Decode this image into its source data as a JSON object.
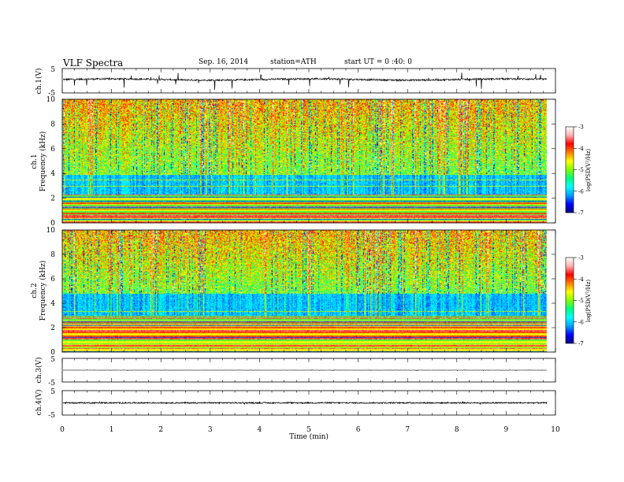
{
  "header": {
    "title": "VLF  Spectra",
    "date": "Sep. 16, 2014",
    "station": "station=ATH",
    "start_ut": "start  UT =   0 :40: 0"
  },
  "chart_data": [
    {
      "type": "line",
      "name": "ch.1",
      "ylabel": "ch.1(V)",
      "ylim": [
        -5,
        5
      ],
      "yticks": [
        "5",
        "-5"
      ],
      "baseline_value": 0.5,
      "noise_amplitude": 0.35,
      "spike_amplitude": 3.5
    },
    {
      "type": "heatmap",
      "name": "ch.1",
      "ylabel_line1": "ch.1",
      "ylabel_line2": "Frequency  (kHz)",
      "ylim": [
        0,
        10
      ],
      "yticks": [
        "0",
        "2",
        "4",
        "6",
        "8",
        "10"
      ],
      "colorbar": {
        "label": "log(PSD(V²/Hz)",
        "ticks": [
          "-3",
          "-4",
          "-5",
          "-6",
          "-7"
        ],
        "range": [
          -7,
          -3
        ]
      },
      "bands": [
        {
          "from_khz": 0.0,
          "to_khz": 2.3,
          "description": "horizontal line-noise bands"
        },
        {
          "from_khz": 2.3,
          "to_khz": 4.0,
          "description": "low-PSD blue band"
        },
        {
          "from_khz": 4.0,
          "to_khz": 10.0,
          "description": "sferics, high PSD"
        }
      ]
    },
    {
      "type": "heatmap",
      "name": "ch.2",
      "ylabel_line1": "ch.2",
      "ylabel_line2": "Frequency  (kHz)",
      "ylim": [
        0,
        10
      ],
      "yticks": [
        "0",
        "2",
        "4",
        "6",
        "8",
        "10"
      ],
      "colorbar": {
        "label": "log(PSD(V²/Hz)",
        "ticks": [
          "-3",
          "-4",
          "-5",
          "-6",
          "-7"
        ],
        "range": [
          -7,
          -3
        ]
      },
      "bands": [
        {
          "from_khz": 0.0,
          "to_khz": 3.0,
          "description": "horizontal line-noise bands"
        },
        {
          "from_khz": 3.0,
          "to_khz": 4.8,
          "description": "low-PSD blue band"
        },
        {
          "from_khz": 4.8,
          "to_khz": 10.0,
          "description": "sferics, high PSD"
        }
      ]
    },
    {
      "type": "line",
      "name": "ch.3",
      "ylabel": "ch.3(V)",
      "ylim": [
        -5,
        5
      ],
      "yticks": [
        "5",
        "-5"
      ],
      "baseline_value": 0,
      "noise_amplitude": 0.05,
      "spike_amplitude": 0.2
    },
    {
      "type": "line",
      "name": "ch.4",
      "ylabel": "ch.4(V)",
      "ylim": [
        -5,
        5
      ],
      "yticks": [
        "5",
        "-5"
      ],
      "baseline_value": 0,
      "noise_amplitude": 0.25,
      "spike_amplitude": 0.3
    }
  ],
  "xaxis": {
    "label": "Time  (min)",
    "xlim": [
      0,
      10
    ],
    "ticks": [
      "0",
      "1",
      "2",
      "3",
      "4",
      "5",
      "6",
      "7",
      "8",
      "9",
      "10"
    ],
    "data_end_min": 9.83
  },
  "colormap": [
    "#000080",
    "#0000ff",
    "#00a0ff",
    "#00ffff",
    "#00ff80",
    "#80ff00",
    "#ffff00",
    "#ff8000",
    "#ff0000",
    "#ffb0b0",
    "#ffffff"
  ]
}
